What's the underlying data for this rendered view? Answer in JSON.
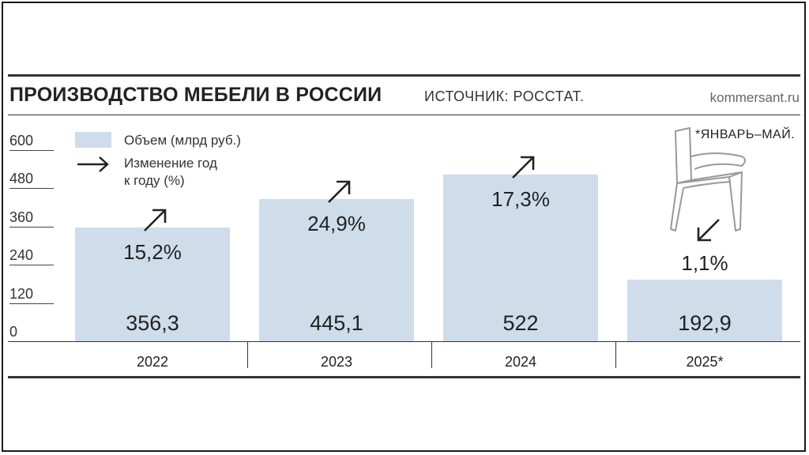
{
  "header": {
    "title": "ПРОИЗВОДСТВО МЕБЕЛИ В РОССИИ",
    "source": "ИСТОЧНИК: РОССТАТ.",
    "site": "kommersant.ru",
    "note": "*ЯНВАРЬ–МАЙ."
  },
  "legend": {
    "volume_label": "Объем (млрд руб.)",
    "change_label_line1": "Изменение год",
    "change_label_line2": "к году (%)"
  },
  "colors": {
    "bar": "#cfdcea",
    "text": "#222222"
  },
  "chart_data": {
    "type": "bar",
    "categories": [
      "2022",
      "2023",
      "2024",
      "2025*"
    ],
    "series": [
      {
        "name": "Объем (млрд руб.)",
        "values": [
          356.3,
          445.1,
          522,
          192.9
        ]
      }
    ],
    "value_labels": [
      "356,3",
      "445,1",
      "522",
      "192,9"
    ],
    "change_labels": [
      "15,2%",
      "24,9%",
      "17,3%",
      "1,1%"
    ],
    "change_direction": [
      "up",
      "up",
      "up",
      "down"
    ],
    "y_ticks": [
      "600",
      "480",
      "360",
      "240",
      "120",
      "0"
    ],
    "ylim": [
      0,
      600
    ],
    "grid": false,
    "legend_position": "top-left"
  }
}
